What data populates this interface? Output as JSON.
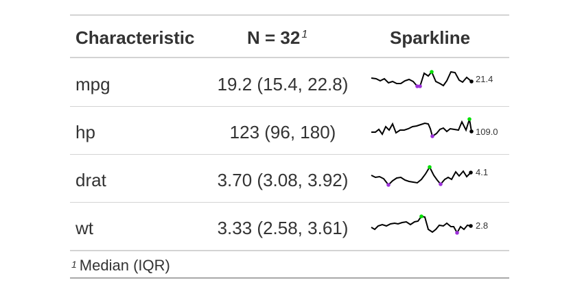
{
  "table": {
    "headers": {
      "characteristic": "Characteristic",
      "n": "N = 32",
      "n_footnote_mark": "1",
      "sparkline": "Sparkline"
    },
    "rows": [
      {
        "label": "mpg",
        "stat": "19.2 (15.4, 22.8)",
        "last_value": "21.4"
      },
      {
        "label": "hp",
        "stat": "123 (96, 180)",
        "last_value": "109.0"
      },
      {
        "label": "drat",
        "stat": "3.70 (3.08, 3.92)",
        "last_value": "4.1"
      },
      {
        "label": "wt",
        "stat": "3.33 (2.58, 3.61)",
        "last_value": "2.8"
      }
    ],
    "footnote": {
      "mark": "1",
      "text": "Median (IQR)"
    }
  },
  "colors": {
    "text": "#333333",
    "line": "#000000",
    "max_point": "#00e000",
    "min_point": "#9b30d9",
    "rule": "#d3d3d3",
    "bottom_rule": "#a8a8a8"
  }
}
